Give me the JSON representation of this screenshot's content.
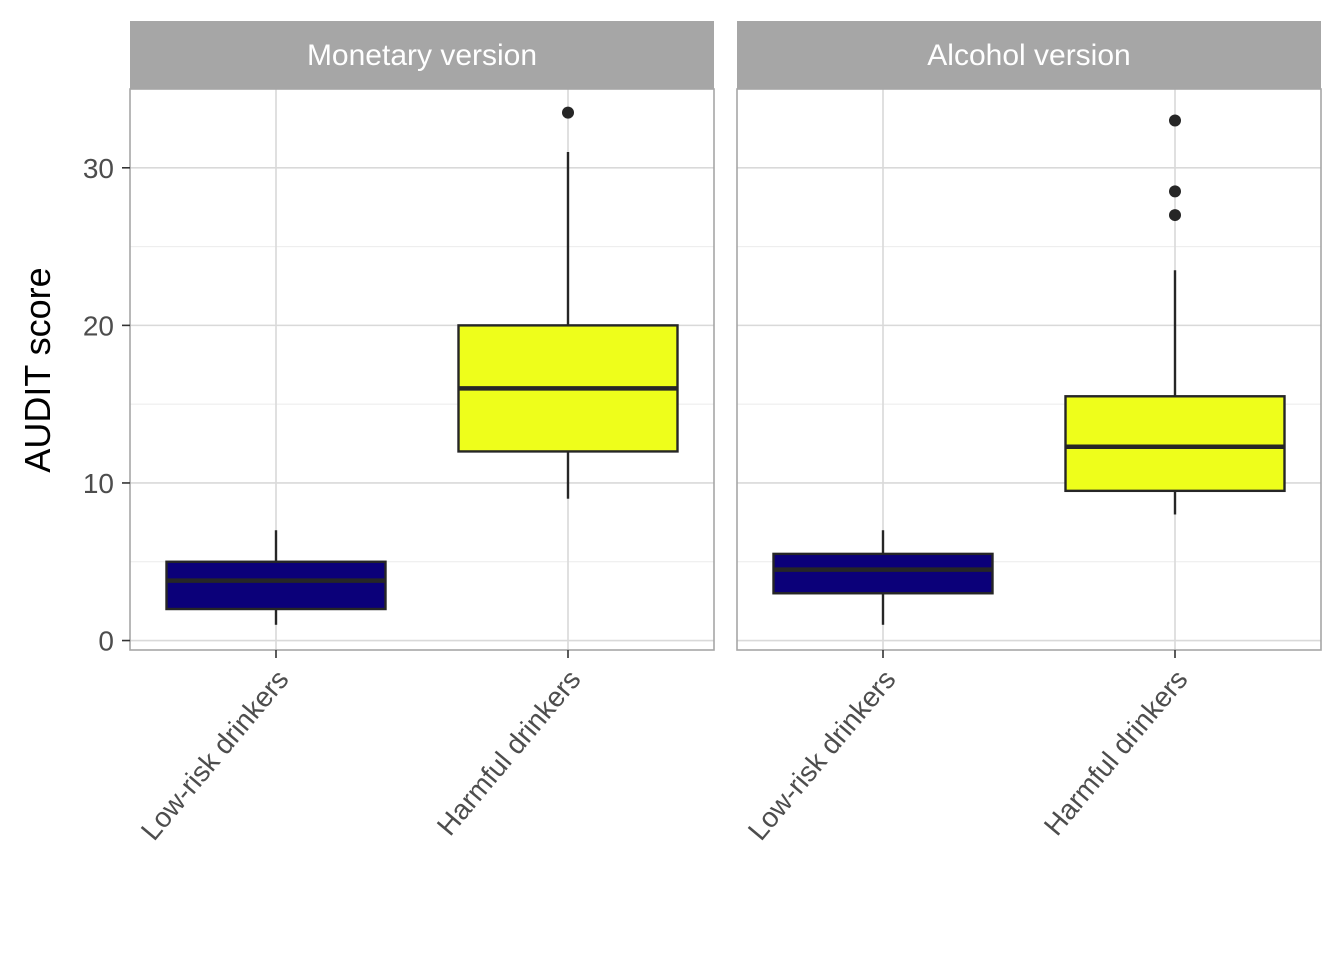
{
  "chart_data": {
    "type": "boxplot",
    "ylabel": "AUDIT score",
    "ylim": [
      -0.6,
      35
    ],
    "yticks": [
      0,
      10,
      20,
      30
    ],
    "grid": true,
    "categories": [
      "Low-risk drinkers",
      "Harmful drinkers"
    ],
    "colors": {
      "Low-risk drinkers": "#0b0079",
      "Harmful drinkers": "#eefe1b",
      "strip": "#a6a6a6",
      "grid": "#d9d9d9",
      "border": "#a6a6a6",
      "outline": "#262626"
    },
    "facets": [
      {
        "title": "Monetary version",
        "boxes": [
          {
            "category": "Low-risk drinkers",
            "min": 1,
            "q1": 2,
            "median": 3.8,
            "q3": 5,
            "max": 7,
            "outliers": []
          },
          {
            "category": "Harmful drinkers",
            "min": 9,
            "q1": 12,
            "median": 16,
            "q3": 20,
            "max": 31,
            "outliers": [
              33.5
            ]
          }
        ]
      },
      {
        "title": "Alcohol version",
        "boxes": [
          {
            "category": "Low-risk drinkers",
            "min": 1,
            "q1": 3,
            "median": 4.5,
            "q3": 5.5,
            "max": 7,
            "outliers": []
          },
          {
            "category": "Harmful drinkers",
            "min": 8,
            "q1": 9.5,
            "median": 12.3,
            "q3": 15.5,
            "max": 23.5,
            "outliers": [
              27,
              28.5,
              33
            ]
          }
        ]
      }
    ]
  }
}
